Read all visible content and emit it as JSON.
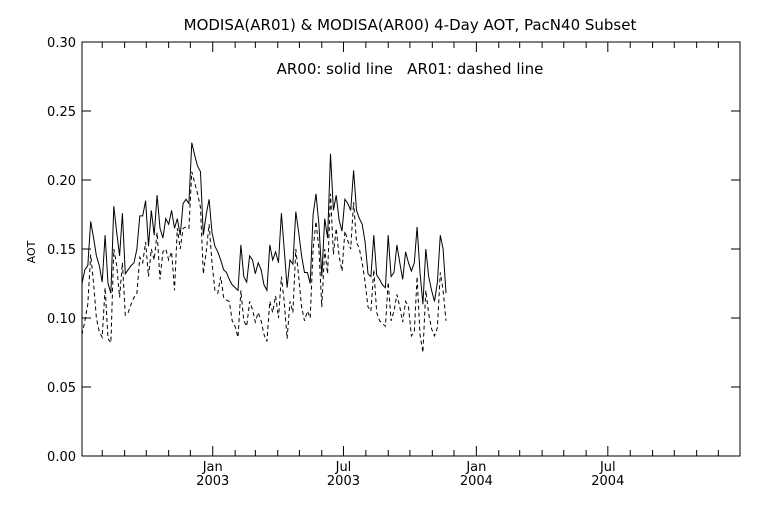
{
  "chart_data": {
    "type": "line",
    "title": "MODISA(AR01) & MODISA(AR00) 4-Day AOT, PacN40 Subset",
    "annotation": "AR00: solid line   AR01: dashed line",
    "xlabel": "",
    "ylabel": "AOT",
    "ylim": [
      0.0,
      0.3
    ],
    "yticks": [
      "0.00",
      "0.05",
      "0.10",
      "0.15",
      "0.20",
      "0.25",
      "0.30"
    ],
    "xticks": [
      {
        "month": "Jan",
        "year": "2003"
      },
      {
        "month": "Jul",
        "year": "2003"
      },
      {
        "month": "Jan",
        "year": "2004"
      },
      {
        "month": "Jul",
        "year": "2004"
      }
    ],
    "xlim": [
      "2002-07-04",
      "2004-12-31"
    ],
    "x_first": "2002-07-04",
    "x_step_days": 4,
    "grid": false,
    "colors": {
      "line": "#000000",
      "axis": "#000000",
      "background": "#ffffff"
    },
    "series": [
      {
        "name": "AR00",
        "style": "solid",
        "values": [
          0.125,
          0.135,
          0.138,
          0.17,
          0.158,
          0.145,
          0.138,
          0.126,
          0.16,
          0.125,
          0.118,
          0.181,
          0.162,
          0.145,
          0.176,
          0.132,
          0.135,
          0.138,
          0.14,
          0.15,
          0.174,
          0.174,
          0.185,
          0.152,
          0.178,
          0.16,
          0.189,
          0.165,
          0.158,
          0.172,
          0.168,
          0.178,
          0.165,
          0.172,
          0.16,
          0.183,
          0.186,
          0.183,
          0.227,
          0.218,
          0.21,
          0.206,
          0.16,
          0.175,
          0.186,
          0.162,
          0.152,
          0.148,
          0.142,
          0.135,
          0.133,
          0.128,
          0.124,
          0.122,
          0.12,
          0.153,
          0.13,
          0.126,
          0.145,
          0.142,
          0.132,
          0.14,
          0.135,
          0.124,
          0.12,
          0.153,
          0.142,
          0.148,
          0.14,
          0.176,
          0.15,
          0.122,
          0.142,
          0.139,
          0.177,
          0.162,
          0.145,
          0.133,
          0.133,
          0.125,
          0.175,
          0.19,
          0.168,
          0.13,
          0.172,
          0.158,
          0.219,
          0.178,
          0.189,
          0.171,
          0.163,
          0.186,
          0.183,
          0.178,
          0.207,
          0.178,
          0.172,
          0.168,
          0.155,
          0.132,
          0.13,
          0.16,
          0.131,
          0.128,
          0.124,
          0.122,
          0.16,
          0.13,
          0.133,
          0.153,
          0.14,
          0.128,
          0.148,
          0.14,
          0.134,
          0.14,
          0.166,
          0.133,
          0.11,
          0.15,
          0.13,
          0.12,
          0.112,
          0.126,
          0.16,
          0.15,
          0.118
        ]
      },
      {
        "name": "AR01",
        "style": "dashed",
        "values": [
          0.088,
          0.098,
          0.11,
          0.146,
          0.125,
          0.1,
          0.09,
          0.086,
          0.122,
          0.085,
          0.082,
          0.15,
          0.138,
          0.115,
          0.14,
          0.102,
          0.104,
          0.11,
          0.115,
          0.118,
          0.144,
          0.14,
          0.155,
          0.13,
          0.15,
          0.142,
          0.162,
          0.128,
          0.148,
          0.15,
          0.142,
          0.148,
          0.12,
          0.165,
          0.15,
          0.165,
          0.166,
          0.165,
          0.206,
          0.198,
          0.19,
          0.18,
          0.132,
          0.148,
          0.168,
          0.14,
          0.12,
          0.118,
          0.13,
          0.115,
          0.113,
          0.112,
          0.098,
          0.094,
          0.086,
          0.12,
          0.098,
          0.094,
          0.112,
          0.106,
          0.097,
          0.104,
          0.098,
          0.088,
          0.083,
          0.112,
          0.104,
          0.116,
          0.1,
          0.13,
          0.112,
          0.085,
          0.112,
          0.104,
          0.15,
          0.13,
          0.108,
          0.098,
          0.105,
          0.1,
          0.15,
          0.17,
          0.15,
          0.108,
          0.15,
          0.132,
          0.19,
          0.146,
          0.165,
          0.145,
          0.134,
          0.163,
          0.156,
          0.15,
          0.184,
          0.155,
          0.15,
          0.14,
          0.126,
          0.108,
          0.105,
          0.135,
          0.104,
          0.098,
          0.096,
          0.094,
          0.126,
          0.098,
          0.105,
          0.117,
          0.108,
          0.097,
          0.112,
          0.108,
          0.087,
          0.09,
          0.13,
          0.088,
          0.075,
          0.12,
          0.103,
          0.092,
          0.087,
          0.093,
          0.133,
          0.12,
          0.098
        ]
      }
    ]
  }
}
